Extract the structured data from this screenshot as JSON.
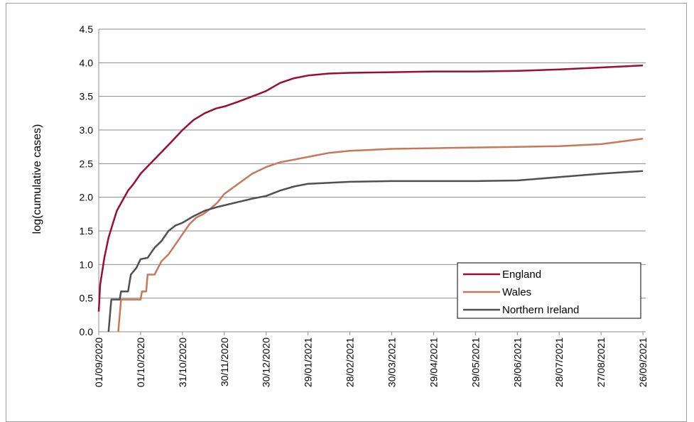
{
  "chart_data": {
    "type": "line",
    "title": "",
    "xlabel": "",
    "ylabel": "log(cumulative cases)",
    "x_tick_labels": [
      "01/09/2020",
      "01/10/2020",
      "31/10/2020",
      "30/11/2020",
      "30/12/2020",
      "29/01/2021",
      "28/02/2021",
      "30/03/2021",
      "29/04/2021",
      "29/05/2021",
      "28/06/2021",
      "28/07/2021",
      "27/08/2021",
      "26/09/2021"
    ],
    "y_tick_labels": [
      "0.0",
      "0.5",
      "1.0",
      "1.5",
      "2.0",
      "2.5",
      "3.0",
      "3.5",
      "4.0",
      "4.5"
    ],
    "ylim": [
      0,
      4.5
    ],
    "grid": true,
    "legend_position": "bottom-right",
    "series": [
      {
        "name": "England",
        "color": "#9b0d35",
        "points": [
          [
            "01/09/2020",
            0.3
          ],
          [
            "02/09/2020",
            0.7
          ],
          [
            "05/09/2020",
            1.1
          ],
          [
            "08/09/2020",
            1.4
          ],
          [
            "11/09/2020",
            1.6
          ],
          [
            "14/09/2020",
            1.8
          ],
          [
            "18/09/2020",
            1.95
          ],
          [
            "22/09/2020",
            2.1
          ],
          [
            "26/09/2020",
            2.2
          ],
          [
            "01/10/2020",
            2.35
          ],
          [
            "08/10/2020",
            2.5
          ],
          [
            "15/10/2020",
            2.65
          ],
          [
            "22/10/2020",
            2.8
          ],
          [
            "31/10/2020",
            3.0
          ],
          [
            "08/11/2020",
            3.15
          ],
          [
            "16/11/2020",
            3.25
          ],
          [
            "24/11/2020",
            3.32
          ],
          [
            "30/11/2020",
            3.35
          ],
          [
            "10/12/2020",
            3.42
          ],
          [
            "20/12/2020",
            3.5
          ],
          [
            "30/12/2020",
            3.58
          ],
          [
            "09/01/2021",
            3.7
          ],
          [
            "19/01/2021",
            3.77
          ],
          [
            "29/01/2021",
            3.81
          ],
          [
            "13/02/2021",
            3.84
          ],
          [
            "28/02/2021",
            3.85
          ],
          [
            "30/03/2021",
            3.86
          ],
          [
            "29/04/2021",
            3.87
          ],
          [
            "29/05/2021",
            3.87
          ],
          [
            "28/06/2021",
            3.88
          ],
          [
            "28/07/2021",
            3.9
          ],
          [
            "27/08/2021",
            3.93
          ],
          [
            "26/09/2021",
            3.96
          ]
        ]
      },
      {
        "name": "Wales",
        "color": "#c8785a",
        "points": [
          [
            "15/09/2020",
            0.0
          ],
          [
            "17/09/2020",
            0.48
          ],
          [
            "01/10/2020",
            0.48
          ],
          [
            "02/10/2020",
            0.6
          ],
          [
            "05/10/2020",
            0.6
          ],
          [
            "06/10/2020",
            0.85
          ],
          [
            "11/10/2020",
            0.85
          ],
          [
            "16/10/2020",
            1.05
          ],
          [
            "21/10/2020",
            1.15
          ],
          [
            "26/10/2020",
            1.3
          ],
          [
            "31/10/2020",
            1.45
          ],
          [
            "05/11/2020",
            1.6
          ],
          [
            "10/11/2020",
            1.7
          ],
          [
            "15/11/2020",
            1.75
          ],
          [
            "20/11/2020",
            1.83
          ],
          [
            "25/11/2020",
            1.92
          ],
          [
            "30/11/2020",
            2.05
          ],
          [
            "10/12/2020",
            2.2
          ],
          [
            "20/12/2020",
            2.35
          ],
          [
            "30/12/2020",
            2.45
          ],
          [
            "09/01/2021",
            2.52
          ],
          [
            "19/01/2021",
            2.56
          ],
          [
            "29/01/2021",
            2.6
          ],
          [
            "13/02/2021",
            2.66
          ],
          [
            "28/02/2021",
            2.69
          ],
          [
            "30/03/2021",
            2.72
          ],
          [
            "29/04/2021",
            2.73
          ],
          [
            "29/05/2021",
            2.74
          ],
          [
            "28/06/2021",
            2.75
          ],
          [
            "28/07/2021",
            2.76
          ],
          [
            "27/08/2021",
            2.79
          ],
          [
            "26/09/2021",
            2.87
          ]
        ]
      },
      {
        "name": "Northern Ireland",
        "color": "#505050",
        "points": [
          [
            "08/09/2020",
            0.0
          ],
          [
            "10/09/2020",
            0.48
          ],
          [
            "16/09/2020",
            0.48
          ],
          [
            "17/09/2020",
            0.6
          ],
          [
            "22/09/2020",
            0.6
          ],
          [
            "24/09/2020",
            0.85
          ],
          [
            "28/09/2020",
            0.95
          ],
          [
            "01/10/2020",
            1.08
          ],
          [
            "06/10/2020",
            1.1
          ],
          [
            "11/10/2020",
            1.25
          ],
          [
            "16/10/2020",
            1.35
          ],
          [
            "21/10/2020",
            1.5
          ],
          [
            "26/10/2020",
            1.58
          ],
          [
            "31/10/2020",
            1.62
          ],
          [
            "08/11/2020",
            1.72
          ],
          [
            "16/11/2020",
            1.8
          ],
          [
            "24/11/2020",
            1.85
          ],
          [
            "30/11/2020",
            1.88
          ],
          [
            "10/12/2020",
            1.93
          ],
          [
            "20/12/2020",
            1.98
          ],
          [
            "30/12/2020",
            2.02
          ],
          [
            "09/01/2021",
            2.1
          ],
          [
            "19/01/2021",
            2.16
          ],
          [
            "29/01/2021",
            2.2
          ],
          [
            "28/02/2021",
            2.23
          ],
          [
            "30/03/2021",
            2.24
          ],
          [
            "29/04/2021",
            2.24
          ],
          [
            "29/05/2021",
            2.24
          ],
          [
            "28/06/2021",
            2.25
          ],
          [
            "28/07/2021",
            2.3
          ],
          [
            "27/08/2021",
            2.35
          ],
          [
            "26/09/2021",
            2.39
          ]
        ]
      }
    ]
  }
}
